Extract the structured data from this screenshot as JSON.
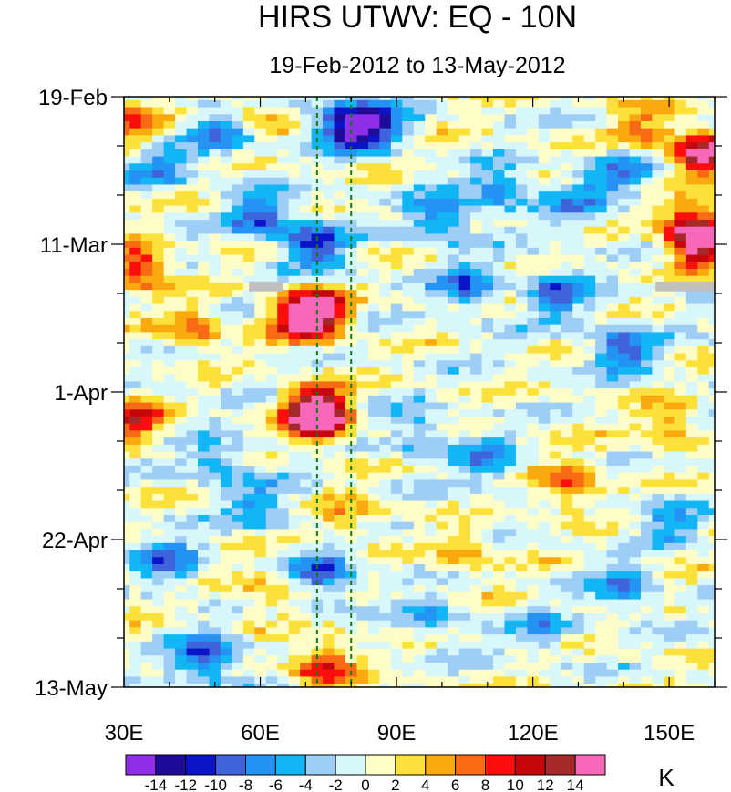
{
  "chart_data": {
    "type": "heatmap",
    "title": "HIRS UTWV: EQ - 10N",
    "subtitle": "19-Feb-2012 to 13-May-2012",
    "x_range": [
      30,
      160
    ],
    "x_ticks": [
      {
        "value": 30,
        "label": "30E"
      },
      {
        "value": 60,
        "label": "60E"
      },
      {
        "value": 90,
        "label": "90E"
      },
      {
        "value": 120,
        "label": "120E"
      },
      {
        "value": 150,
        "label": "150E"
      }
    ],
    "y_range_days": [
      0,
      84
    ],
    "y_ticks": [
      {
        "day": 0,
        "label": "19-Feb"
      },
      {
        "day": 21,
        "label": "11-Mar"
      },
      {
        "day": 42,
        "label": "1-Apr"
      },
      {
        "day": 63,
        "label": "22-Apr"
      },
      {
        "day": 84,
        "label": "13-May"
      }
    ],
    "reference_lines_lon": [
      72.5,
      80
    ],
    "missing_data": [
      {
        "lon_range": [
          57.5,
          65
        ],
        "day": 27
      },
      {
        "lon_range": [
          147,
          160
        ],
        "day": 27
      }
    ],
    "contour_levels": [
      -14,
      -12,
      -10,
      -8,
      -6,
      -4,
      -2,
      0,
      2,
      4,
      6,
      8,
      10,
      12,
      14
    ],
    "colorbar_labels": [
      "-14",
      "-12",
      "-10",
      "-8",
      "-6",
      "-4",
      "-2",
      "0",
      "2",
      "4",
      "6",
      "8",
      "10",
      "12",
      "14"
    ],
    "colors": [
      "#8f2ee8",
      "#1f0b99",
      "#0c14ca",
      "#3f63db",
      "#2493f3",
      "#12b6f4",
      "#9ecdf6",
      "#d7f7fb",
      "#fefdc8",
      "#fce13b",
      "#faa90f",
      "#f96a14",
      "#fa0f0c",
      "#c6080e",
      "#a52929",
      "#f868b8"
    ],
    "units": "K",
    "anomaly_features": [
      {
        "lon": 73,
        "day": 31,
        "value": 15
      },
      {
        "lon": 73,
        "day": 46,
        "value": 15
      },
      {
        "lon": 68,
        "day": 31,
        "value": 9
      },
      {
        "lon": 72,
        "day": 44,
        "value": 11
      },
      {
        "lon": 74,
        "day": 81,
        "value": 10
      },
      {
        "lon": 158,
        "day": 8,
        "value": 15
      },
      {
        "lon": 157,
        "day": 21,
        "value": 15
      },
      {
        "lon": 155,
        "day": 18,
        "value": 10
      },
      {
        "lon": 33,
        "day": 24,
        "value": 11
      },
      {
        "lon": 32,
        "day": 4,
        "value": 7
      },
      {
        "lon": 32,
        "day": 46,
        "value": 10
      },
      {
        "lon": 145,
        "day": 5,
        "value": 7
      },
      {
        "lon": 128,
        "day": 55,
        "value": 8
      },
      {
        "lon": 150,
        "day": 47,
        "value": 6
      },
      {
        "lon": 105,
        "day": 65,
        "value": 5
      },
      {
        "lon": 60,
        "day": 70,
        "value": 5
      },
      {
        "lon": 45,
        "day": 33,
        "value": 7
      },
      {
        "lon": 80,
        "day": 60,
        "value": 5
      },
      {
        "lon": 58,
        "day": 2,
        "value": 5
      },
      {
        "lon": 78,
        "day": 4,
        "value": -11
      },
      {
        "lon": 85,
        "day": 4,
        "value": -12
      },
      {
        "lon": 52,
        "day": 5,
        "value": -8
      },
      {
        "lon": 72,
        "day": 21,
        "value": -11
      },
      {
        "lon": 60,
        "day": 17,
        "value": -9
      },
      {
        "lon": 100,
        "day": 17,
        "value": -9
      },
      {
        "lon": 113,
        "day": 13,
        "value": -8
      },
      {
        "lon": 105,
        "day": 27,
        "value": -8
      },
      {
        "lon": 125,
        "day": 28,
        "value": -9
      },
      {
        "lon": 140,
        "day": 36,
        "value": -9
      },
      {
        "lon": 140,
        "day": 11,
        "value": -7
      },
      {
        "lon": 130,
        "day": 15,
        "value": -6
      },
      {
        "lon": 48,
        "day": 80,
        "value": -11
      },
      {
        "lon": 74,
        "day": 68,
        "value": -9
      },
      {
        "lon": 60,
        "day": 58,
        "value": -6
      },
      {
        "lon": 110,
        "day": 52,
        "value": -7
      },
      {
        "lon": 40,
        "day": 66,
        "value": -8
      },
      {
        "lon": 140,
        "day": 70,
        "value": -7
      },
      {
        "lon": 98,
        "day": 74,
        "value": -5
      },
      {
        "lon": 150,
        "day": 60,
        "value": -6
      },
      {
        "lon": 123,
        "day": 76,
        "value": -5
      },
      {
        "lon": 95,
        "day": 48,
        "value": -5
      },
      {
        "lon": 50,
        "day": 52,
        "value": -6
      },
      {
        "lon": 38,
        "day": 10,
        "value": -7
      }
    ]
  }
}
